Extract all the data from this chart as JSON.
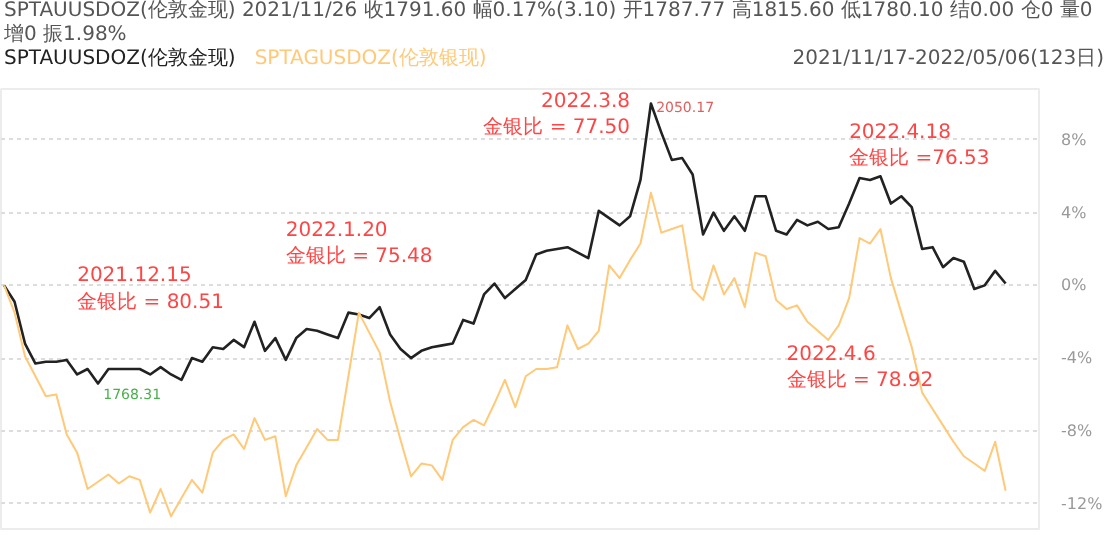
{
  "chart_data": {
    "type": "line",
    "title": "SPTAUUSDOZ(伦敦金现) 2021/11/26 收1791.60 幅0.17%(3.10) 开1787.77 高1815.60 低1780.10 结0.00 仓0 量0 增0 振1.98%",
    "categories": [
      null,
      null,
      null,
      null,
      null,
      null,
      null,
      null,
      null,
      null,
      null,
      null,
      null,
      null,
      null,
      null,
      null,
      null,
      null,
      null,
      null,
      null,
      null,
      null,
      null,
      null,
      null,
      null,
      null,
      null,
      null,
      null,
      null,
      null,
      null,
      null,
      null,
      null,
      null,
      null,
      null,
      null,
      null,
      null,
      null,
      null,
      null,
      null,
      null,
      null,
      null,
      null,
      null,
      null,
      null,
      null,
      null,
      null,
      null,
      null,
      null,
      null,
      null,
      null,
      null,
      null,
      null,
      null,
      null,
      null,
      null,
      null,
      null,
      null,
      null,
      null,
      null,
      null,
      null,
      null,
      null,
      null,
      null,
      null,
      null,
      null,
      null,
      null,
      null,
      null,
      null,
      null,
      null,
      null,
      null,
      null,
      null
    ],
    "series": [
      {
        "name": "SPTAUUSDOZ(伦敦金现)",
        "color": "#222222",
        "values": [
          0,
          -0.9,
          -3.2,
          -4.3,
          -4.2,
          -4.2,
          -4.1,
          -4.9,
          -4.6,
          -5.4,
          -4.6,
          -4.6,
          -4.6,
          -4.6,
          -4.9,
          -4.5,
          -4.9,
          -5.2,
          -4.0,
          -4.2,
          -3.4,
          -3.5,
          -3.0,
          -3.4,
          -2.0,
          -3.6,
          -2.9,
          -4.1,
          -2.9,
          -2.4,
          -2.5,
          -2.7,
          -2.9,
          -1.5,
          -1.6,
          -1.8,
          -1.2,
          -2.7,
          -3.5,
          -4.0,
          -3.6,
          -3.4,
          -3.3,
          -3.2,
          -1.9,
          -2.1,
          -0.5,
          0.1,
          -0.7,
          -0.2,
          0.3,
          1.7,
          1.9,
          2.0,
          2.1,
          1.8,
          1.5,
          4.1,
          3.7,
          3.3,
          3.8,
          5.8,
          10.0,
          8.4,
          6.9,
          7.0,
          6.1,
          2.8,
          4.0,
          3.0,
          3.8,
          3.0,
          4.9,
          4.9,
          3.0,
          2.8,
          3.6,
          3.3,
          3.5,
          3.1,
          3.2,
          4.5,
          5.9,
          5.8,
          6.0,
          4.5,
          4.9,
          4.3,
          2.0,
          2.1,
          1.0,
          1.5,
          1.3,
          -0.2,
          0,
          0.8,
          0.1
        ]
      },
      {
        "name": "SPTAGUSDOZ(伦敦银现)",
        "color": "#ffc978",
        "values": [
          0,
          -1.5,
          -3.9,
          -5.0,
          -6.1,
          -6.0,
          -8.2,
          -9.2,
          -11.2,
          -10.8,
          -10.4,
          -10.9,
          -10.5,
          -10.7,
          -12.5,
          -11.2,
          -12.7,
          -11.7,
          -10.7,
          -11.4,
          -9.2,
          -8.5,
          -8.2,
          -9.0,
          -7.3,
          -8.5,
          -8.3,
          -11.6,
          -9.9,
          -8.9,
          -7.9,
          -8.5,
          -8.5,
          -5.0,
          -1.5,
          -2.6,
          -3.7,
          -6.4,
          -8.5,
          -10.5,
          -9.8,
          -9.9,
          -10.7,
          -8.5,
          -7.8,
          -7.4,
          -7.7,
          -6.5,
          -5.2,
          -6.7,
          -5.0,
          -4.6,
          -4.6,
          -4.5,
          -2.2,
          -3.5,
          -3.2,
          -2.5,
          1.1,
          0.4,
          1.4,
          2.3,
          5.1,
          2.9,
          3.1,
          3.3,
          -0.2,
          -0.8,
          1.1,
          -0.5,
          0.4,
          -1.2,
          1.8,
          1.6,
          -0.8,
          -1.3,
          -1.1,
          -2.0,
          -2.5,
          -3.0,
          -2.2,
          -0.7,
          2.6,
          2.3,
          3.1,
          0.4,
          -1.5,
          -3.4,
          -5.9,
          -6.8,
          -7.7,
          -8.6,
          -9.4,
          -9.8,
          -10.2,
          -8.6,
          -11.3
        ]
      }
    ],
    "ylim": [
      -13.4,
      10.8
    ],
    "yticks": [
      {
        "value": 8,
        "label": "8%"
      },
      {
        "value": 4,
        "label": "4%"
      },
      {
        "value": 0,
        "label": "0%"
      },
      {
        "value": -4,
        "label": "-4%"
      },
      {
        "value": -8,
        "label": "-8%"
      },
      {
        "value": -12,
        "label": "-12%"
      }
    ],
    "tick_labels": "y",
    "grid": "y",
    "line_style": "solid",
    "annotations": [
      "2021.12.15\n金银比 = 80.51",
      "2022.1.20\n金银比 = 75.48",
      "2022.3.8\n金银比 = 77.50",
      "2022.4.6\n金银比 = 78.92",
      "2022.4.18\n金银比 =76.53",
      "1768.31",
      "2050.17",
      "2021/11/17-2022/05/06(123日)"
    ]
  }
}
